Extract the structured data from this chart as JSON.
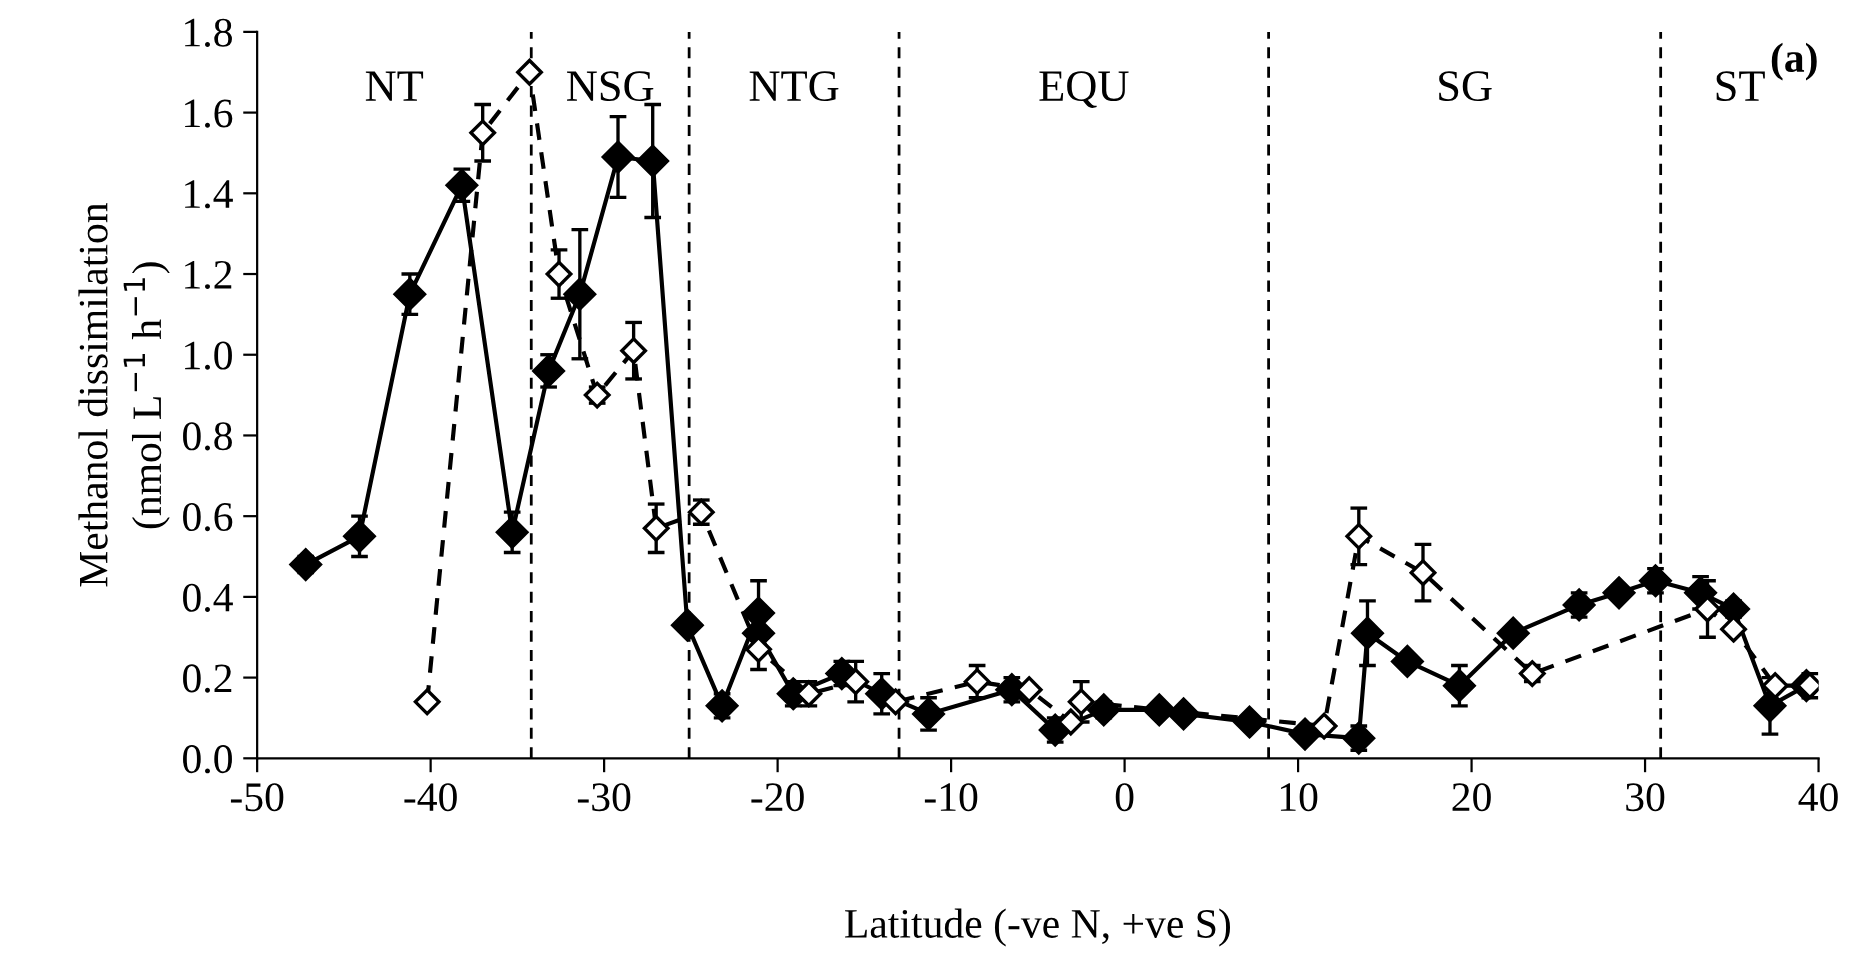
{
  "chart_data": {
    "type": "line",
    "xlabel": "Latitude (-ve N, +ve S)",
    "ylabel": "Methanol dissimilation\n(nmol L$^{−1}$ h$^{−1}$)",
    "xlim": [
      -50,
      40
    ],
    "xticks": [
      -50,
      -40,
      -30,
      -20,
      -10,
      0,
      10,
      20,
      30,
      40
    ],
    "ylim": [
      0,
      1.8
    ],
    "yticks": [
      {
        "value": 0,
        "label": "0.0"
      },
      0.2,
      0.4,
      0.6,
      0.8,
      {
        "value": 1,
        "label": "1.0"
      },
      1.2,
      1.4,
      1.6,
      1.8
    ],
    "grid": false,
    "legend": false,
    "marker": "diamond",
    "series": [
      {
        "color": "#000000",
        "line_style": "solid",
        "x": [
          -47.2,
          -44.1,
          -41.2,
          -38.2,
          -35.3,
          -33.2,
          -31.4,
          -29.2,
          -27.2,
          -25.2,
          -23.2,
          -21.1,
          -21.1,
          -19.1,
          -16.3,
          -14.0,
          -11.3,
          -6.5,
          -4.0,
          -1.2,
          2.0,
          3.4,
          7.2,
          10.4,
          13.5,
          14.0,
          16.3,
          19.3,
          22.4,
          26.2,
          28.5,
          30.6,
          33.2,
          35.1,
          37.2,
          39.3
        ],
        "values": [
          0.48,
          0.55,
          1.15,
          1.42,
          0.56,
          0.96,
          1.15,
          1.49,
          1.48,
          0.33,
          0.13,
          0.36,
          0.31,
          0.16,
          0.21,
          0.16,
          0.11,
          0.17,
          0.07,
          0.12,
          0.12,
          0.11,
          0.09,
          0.06,
          0.05,
          0.31,
          0.24,
          0.18,
          0.31,
          0.38,
          0.41,
          0.44,
          0.41,
          0.37,
          0.13,
          0.18
        ],
        "errors": [
          0.02,
          0.05,
          0.05,
          0.04,
          0.05,
          0.04,
          0.16,
          0.1,
          0.14,
          0.01,
          0.03,
          0.08,
          null,
          0.03,
          0.03,
          0.05,
          0.04,
          0.03,
          0.03,
          0.02,
          null,
          null,
          null,
          0.01,
          0.03,
          0.08,
          null,
          0.05,
          0.01,
          0.03,
          null,
          0.03,
          0.04,
          0.02,
          0.07,
          null
        ]
      },
      {
        "color": "#000000",
        "line_style": "dashed",
        "x": [
          -40.2,
          -37.0,
          -34.3,
          -32.6,
          -30.4,
          -28.3,
          -27.0,
          -24.4,
          -21.1,
          -18.2,
          -15.5,
          -13.2,
          -8.5,
          -5.5,
          -3.1,
          -2.5,
          11.5,
          13.5,
          17.2,
          23.5,
          33.6,
          35.1,
          37.5,
          39.5
        ],
        "values": [
          0.14,
          1.55,
          1.7,
          1.2,
          0.9,
          1.01,
          0.57,
          0.61,
          0.27,
          0.16,
          0.19,
          0.14,
          0.19,
          0.17,
          0.09,
          0.14,
          0.08,
          0.55,
          0.46,
          0.21,
          0.37,
          0.32,
          0.18,
          0.18
        ],
        "errors": [
          null,
          0.07,
          null,
          0.06,
          0.02,
          0.07,
          0.06,
          0.03,
          0.05,
          0.03,
          0.05,
          null,
          0.04,
          null,
          null,
          0.05,
          null,
          0.07,
          0.07,
          0.02,
          0.07,
          null,
          null,
          0.03
        ]
      }
    ],
    "ref_lines": [
      {
        "axis": "x",
        "value": -34.2,
        "line_style": "dashed",
        "color": "#000000"
      },
      {
        "axis": "x",
        "value": -25.1,
        "line_style": "dashed",
        "color": "#000000"
      },
      {
        "axis": "x",
        "value": -13.0,
        "line_style": "dashed",
        "color": "#000000"
      },
      {
        "axis": "x",
        "value": 8.3,
        "line_style": "dashed",
        "color": "#000000"
      },
      {
        "axis": "x",
        "value": 30.9,
        "line_style": "dashed",
        "color": "#000000"
      }
    ],
    "annotations": [
      "NT",
      "NSG",
      "NTG",
      "EQU",
      "SG",
      "ST",
      "(a)"
    ]
  }
}
